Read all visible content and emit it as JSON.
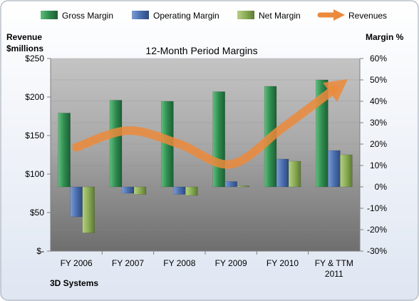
{
  "chart_data": {
    "type": "bar",
    "title": "12-Month Period Margins",
    "company": "3D Systems",
    "y_left_label": [
      "Revenue",
      "$millions"
    ],
    "y_right_label": "Margin %",
    "categories": [
      [
        "FY 2006"
      ],
      [
        "FY 2007"
      ],
      [
        "FY 2008"
      ],
      [
        "FY 2009"
      ],
      [
        "FY 2010"
      ],
      [
        "FY & TTM",
        "2011"
      ]
    ],
    "y_left_ticks": [
      "$-",
      "$50",
      "$100",
      "$150",
      "$200",
      "$250"
    ],
    "y_left_range": [
      0,
      250
    ],
    "y_right_ticks": [
      "-30%",
      "-20%",
      "-10%",
      "0%",
      "10%",
      "20%",
      "30%",
      "40%",
      "50%",
      "60%"
    ],
    "y_right_range": [
      -30,
      60
    ],
    "series": [
      {
        "name": "Gross Margin",
        "kind": "bar",
        "axis": "right",
        "color": "#2e8b4f",
        "values": [
          34.5,
          40.5,
          40,
          44.5,
          47,
          50
        ]
      },
      {
        "name": "Operating Margin",
        "kind": "bar",
        "axis": "right",
        "color": "#4a6fb0",
        "values": [
          -14,
          -3,
          -3.5,
          2.5,
          13,
          17
        ]
      },
      {
        "name": "Net Margin",
        "kind": "bar",
        "axis": "right",
        "color": "#8aac55",
        "values": [
          -21.5,
          -3.5,
          -4,
          0.5,
          12,
          15
        ]
      },
      {
        "name": "Revenues",
        "kind": "line",
        "axis": "left",
        "color": "#ec8a3b",
        "values": [
          134.8,
          156.4,
          138.9,
          112.8,
          159.9,
          210
        ]
      }
    ],
    "legend_position": "top"
  }
}
